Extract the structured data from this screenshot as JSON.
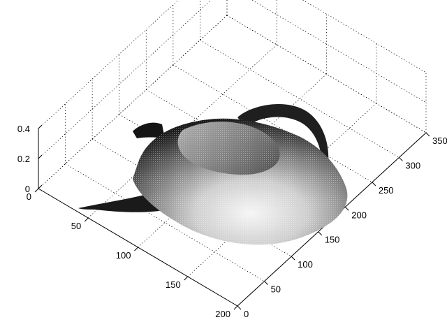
{
  "chart_data": {
    "type": "surface",
    "title": "",
    "xlabel": "",
    "ylabel": "",
    "zlabel": "",
    "grid": true,
    "colormap": "gray",
    "object": "teapot",
    "x_range": [
      0,
      200
    ],
    "y_range": [
      0,
      350
    ],
    "z_range": [
      0,
      0.4
    ],
    "x_ticks": [
      "0",
      "50",
      "100",
      "150",
      "200"
    ],
    "y_ticks": [
      "0",
      "50",
      "100",
      "150",
      "200",
      "250",
      "300",
      "350"
    ],
    "z_ticks": [
      "0",
      "0.2",
      "0.4"
    ]
  }
}
